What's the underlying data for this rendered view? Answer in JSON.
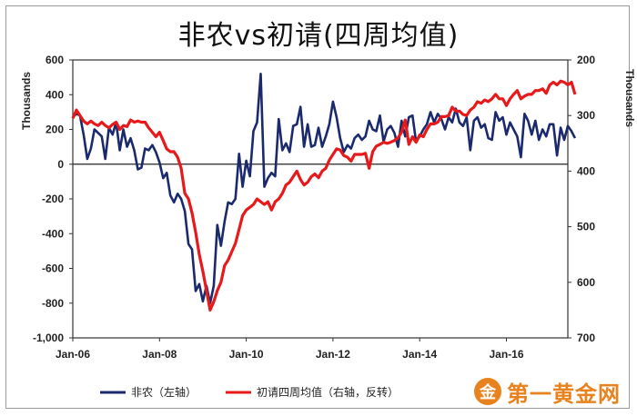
{
  "chart_data": {
    "type": "line",
    "title": "非农vs初请(四周均值)",
    "left_axis": {
      "label": "Thousands",
      "ticks": [
        600,
        400,
        200,
        0,
        -200,
        -400,
        -600,
        -800,
        -1000
      ],
      "tick_labels": [
        "600",
        "400",
        "200",
        "0",
        "-200",
        "-400",
        "-600",
        "-800",
        "-1,000"
      ],
      "range": [
        -1000,
        600
      ]
    },
    "right_axis": {
      "label": "Thousands",
      "ticks": [
        200,
        300,
        400,
        500,
        600,
        700
      ],
      "range": [
        200,
        700
      ],
      "reversed": true
    },
    "x_axis": {
      "tick_labels": [
        "Jan-06",
        "Jan-08",
        "Jan-10",
        "Jan-12",
        "Jan-14",
        "Jan-16"
      ],
      "range": [
        "2006-01",
        "2017-06"
      ]
    },
    "legend_position": "bottom",
    "series": [
      {
        "name": "非农（左轴）",
        "axis": "left",
        "color": "#1a2a6c",
        "points": [
          [
            "2006-01",
            270
          ],
          [
            "2006-02",
            290
          ],
          [
            "2006-03",
            280
          ],
          [
            "2006-04",
            170
          ],
          [
            "2006-05",
            30
          ],
          [
            "2006-06",
            90
          ],
          [
            "2006-07",
            200
          ],
          [
            "2006-08",
            180
          ],
          [
            "2006-09",
            160
          ],
          [
            "2006-10",
            30
          ],
          [
            "2006-11",
            210
          ],
          [
            "2006-12",
            170
          ],
          [
            "2007-01",
            240
          ],
          [
            "2007-02",
            80
          ],
          [
            "2007-03",
            200
          ],
          [
            "2007-04",
            100
          ],
          [
            "2007-05",
            150
          ],
          [
            "2007-06",
            80
          ],
          [
            "2007-07",
            -30
          ],
          [
            "2007-08",
            -20
          ],
          [
            "2007-09",
            90
          ],
          [
            "2007-10",
            80
          ],
          [
            "2007-11",
            110
          ],
          [
            "2007-12",
            70
          ],
          [
            "2008-01",
            10
          ],
          [
            "2008-02",
            -80
          ],
          [
            "2008-03",
            -50
          ],
          [
            "2008-04",
            -180
          ],
          [
            "2008-05",
            -220
          ],
          [
            "2008-06",
            -170
          ],
          [
            "2008-07",
            -200
          ],
          [
            "2008-08",
            -270
          ],
          [
            "2008-09",
            -460
          ],
          [
            "2008-10",
            -490
          ],
          [
            "2008-11",
            -730
          ],
          [
            "2008-12",
            -690
          ],
          [
            "2009-01",
            -790
          ],
          [
            "2009-02",
            -700
          ],
          [
            "2009-03",
            -800
          ],
          [
            "2009-04",
            -700
          ],
          [
            "2009-05",
            -350
          ],
          [
            "2009-06",
            -470
          ],
          [
            "2009-07",
            -330
          ],
          [
            "2009-08",
            -220
          ],
          [
            "2009-09",
            -230
          ],
          [
            "2009-10",
            -200
          ],
          [
            "2009-11",
            60
          ],
          [
            "2009-12",
            -130
          ],
          [
            "2010-01",
            20
          ],
          [
            "2010-02",
            -70
          ],
          [
            "2010-03",
            190
          ],
          [
            "2010-04",
            240
          ],
          [
            "2010-05",
            520
          ],
          [
            "2010-06",
            -130
          ],
          [
            "2010-07",
            -80
          ],
          [
            "2010-08",
            -50
          ],
          [
            "2010-09",
            -70
          ],
          [
            "2010-10",
            260
          ],
          [
            "2010-11",
            80
          ],
          [
            "2010-12",
            120
          ],
          [
            "2011-01",
            70
          ],
          [
            "2011-02",
            220
          ],
          [
            "2011-03",
            230
          ],
          [
            "2011-04",
            330
          ],
          [
            "2011-05",
            100
          ],
          [
            "2011-06",
            230
          ],
          [
            "2011-07",
            100
          ],
          [
            "2011-08",
            110
          ],
          [
            "2011-09",
            210
          ],
          [
            "2011-10",
            100
          ],
          [
            "2011-11",
            160
          ],
          [
            "2011-12",
            230
          ],
          [
            "2012-01",
            360
          ],
          [
            "2012-02",
            270
          ],
          [
            "2012-03",
            150
          ],
          [
            "2012-04",
            70
          ],
          [
            "2012-05",
            110
          ],
          [
            "2012-06",
            90
          ],
          [
            "2012-07",
            150
          ],
          [
            "2012-08",
            170
          ],
          [
            "2012-09",
            140
          ],
          [
            "2012-10",
            160
          ],
          [
            "2012-11",
            250
          ],
          [
            "2012-12",
            200
          ],
          [
            "2013-01",
            190
          ],
          [
            "2013-02",
            280
          ],
          [
            "2013-03",
            130
          ],
          [
            "2013-04",
            200
          ],
          [
            "2013-05",
            220
          ],
          [
            "2013-06",
            180
          ],
          [
            "2013-07",
            100
          ],
          [
            "2013-08",
            250
          ],
          [
            "2013-09",
            160
          ],
          [
            "2013-10",
            270
          ],
          [
            "2013-11",
            280
          ],
          [
            "2013-12",
            130
          ],
          [
            "2014-01",
            160
          ],
          [
            "2014-02",
            200
          ],
          [
            "2014-03",
            230
          ],
          [
            "2014-04",
            300
          ],
          [
            "2014-05",
            240
          ],
          [
            "2014-06",
            290
          ],
          [
            "2014-07",
            260
          ],
          [
            "2014-08",
            200
          ],
          [
            "2014-09",
            270
          ],
          [
            "2014-10",
            240
          ],
          [
            "2014-11",
            320
          ],
          [
            "2014-12",
            240
          ],
          [
            "2015-01",
            220
          ],
          [
            "2015-02",
            270
          ],
          [
            "2015-03",
            80
          ],
          [
            "2015-04",
            250
          ],
          [
            "2015-05",
            270
          ],
          [
            "2015-06",
            210
          ],
          [
            "2015-07",
            230
          ],
          [
            "2015-08",
            150
          ],
          [
            "2015-09",
            140
          ],
          [
            "2015-10",
            300
          ],
          [
            "2015-11",
            250
          ],
          [
            "2015-12",
            270
          ],
          [
            "2016-01",
            170
          ],
          [
            "2016-02",
            240
          ],
          [
            "2016-03",
            200
          ],
          [
            "2016-04",
            160
          ],
          [
            "2016-05",
            40
          ],
          [
            "2016-06",
            290
          ],
          [
            "2016-07",
            250
          ],
          [
            "2016-08",
            170
          ],
          [
            "2016-09",
            250
          ],
          [
            "2016-10",
            140
          ],
          [
            "2016-11",
            200
          ],
          [
            "2016-12",
            160
          ],
          [
            "2017-01",
            230
          ],
          [
            "2017-02",
            230
          ],
          [
            "2017-03",
            50
          ],
          [
            "2017-04",
            210
          ],
          [
            "2017-05",
            140
          ],
          [
            "2017-06",
            220
          ],
          [
            "2017-07",
            190
          ],
          [
            "2017-08",
            150
          ]
        ]
      },
      {
        "name": "初请四周均值（右轴，反转）",
        "axis": "right",
        "color": "#e8191a",
        "points": [
          [
            "2006-01",
            305
          ],
          [
            "2006-02",
            290
          ],
          [
            "2006-03",
            300
          ],
          [
            "2006-04",
            310
          ],
          [
            "2006-05",
            315
          ],
          [
            "2006-06",
            310
          ],
          [
            "2006-07",
            315
          ],
          [
            "2006-08",
            318
          ],
          [
            "2006-09",
            312
          ],
          [
            "2006-10",
            318
          ],
          [
            "2006-11",
            322
          ],
          [
            "2006-12",
            316
          ],
          [
            "2007-01",
            312
          ],
          [
            "2007-02",
            325
          ],
          [
            "2007-03",
            318
          ],
          [
            "2007-04",
            320
          ],
          [
            "2007-05",
            308
          ],
          [
            "2007-06",
            312
          ],
          [
            "2007-07",
            310
          ],
          [
            "2007-08",
            312
          ],
          [
            "2007-09",
            312
          ],
          [
            "2007-10",
            322
          ],
          [
            "2007-11",
            330
          ],
          [
            "2007-12",
            338
          ],
          [
            "2008-01",
            330
          ],
          [
            "2008-02",
            345
          ],
          [
            "2008-03",
            360
          ],
          [
            "2008-04",
            365
          ],
          [
            "2008-05",
            365
          ],
          [
            "2008-06",
            375
          ],
          [
            "2008-07",
            395
          ],
          [
            "2008-08",
            440
          ],
          [
            "2008-09",
            450
          ],
          [
            "2008-10",
            475
          ],
          [
            "2008-11",
            510
          ],
          [
            "2008-12",
            550
          ],
          [
            "2009-01",
            580
          ],
          [
            "2009-02",
            615
          ],
          [
            "2009-03",
            650
          ],
          [
            "2009-04",
            635
          ],
          [
            "2009-05",
            615
          ],
          [
            "2009-06",
            600
          ],
          [
            "2009-07",
            570
          ],
          [
            "2009-08",
            560
          ],
          [
            "2009-09",
            545
          ],
          [
            "2009-10",
            530
          ],
          [
            "2009-11",
            505
          ],
          [
            "2009-12",
            480
          ],
          [
            "2010-01",
            470
          ],
          [
            "2010-02",
            465
          ],
          [
            "2010-03",
            460
          ],
          [
            "2010-04",
            450
          ],
          [
            "2010-05",
            455
          ],
          [
            "2010-06",
            460
          ],
          [
            "2010-07",
            455
          ],
          [
            "2010-08",
            470
          ],
          [
            "2010-09",
            455
          ],
          [
            "2010-10",
            450
          ],
          [
            "2010-11",
            440
          ],
          [
            "2010-12",
            425
          ],
          [
            "2011-01",
            420
          ],
          [
            "2011-02",
            410
          ],
          [
            "2011-03",
            400
          ],
          [
            "2011-04",
            415
          ],
          [
            "2011-05",
            425
          ],
          [
            "2011-06",
            420
          ],
          [
            "2011-07",
            410
          ],
          [
            "2011-08",
            405
          ],
          [
            "2011-09",
            412
          ],
          [
            "2011-10",
            400
          ],
          [
            "2011-11",
            395
          ],
          [
            "2011-12",
            380
          ],
          [
            "2012-01",
            370
          ],
          [
            "2012-02",
            360
          ],
          [
            "2012-03",
            362
          ],
          [
            "2012-04",
            372
          ],
          [
            "2012-05",
            375
          ],
          [
            "2012-06",
            382
          ],
          [
            "2012-07",
            370
          ],
          [
            "2012-08",
            370
          ],
          [
            "2012-09",
            370
          ],
          [
            "2012-10",
            368
          ],
          [
            "2012-11",
            395
          ],
          [
            "2012-12",
            365
          ],
          [
            "2013-01",
            355
          ],
          [
            "2013-02",
            352
          ],
          [
            "2013-03",
            348
          ],
          [
            "2013-04",
            350
          ],
          [
            "2013-05",
            348
          ],
          [
            "2013-06",
            345
          ],
          [
            "2013-07",
            340
          ],
          [
            "2013-08",
            330
          ],
          [
            "2013-09",
            308
          ],
          [
            "2013-10",
            352
          ],
          [
            "2013-11",
            338
          ],
          [
            "2013-12",
            348
          ],
          [
            "2014-01",
            335
          ],
          [
            "2014-02",
            338
          ],
          [
            "2014-03",
            325
          ],
          [
            "2014-04",
            315
          ],
          [
            "2014-05",
            315
          ],
          [
            "2014-06",
            312
          ],
          [
            "2014-07",
            302
          ],
          [
            "2014-08",
            302
          ],
          [
            "2014-09",
            300
          ],
          [
            "2014-10",
            285
          ],
          [
            "2014-11",
            292
          ],
          [
            "2014-12",
            292
          ],
          [
            "2015-01",
            298
          ],
          [
            "2015-02",
            300
          ],
          [
            "2015-03",
            290
          ],
          [
            "2015-04",
            285
          ],
          [
            "2015-05",
            275
          ],
          [
            "2015-06",
            278
          ],
          [
            "2015-07",
            272
          ],
          [
            "2015-08",
            275
          ],
          [
            "2015-09",
            270
          ],
          [
            "2015-10",
            262
          ],
          [
            "2015-11",
            270
          ],
          [
            "2015-12",
            270
          ],
          [
            "2016-01",
            282
          ],
          [
            "2016-02",
            270
          ],
          [
            "2016-03",
            262
          ],
          [
            "2016-04",
            255
          ],
          [
            "2016-05",
            270
          ],
          [
            "2016-06",
            265
          ],
          [
            "2016-07",
            262
          ],
          [
            "2016-08",
            262
          ],
          [
            "2016-09",
            255
          ],
          [
            "2016-10",
            255
          ],
          [
            "2016-11",
            252
          ],
          [
            "2016-12",
            260
          ],
          [
            "2017-01",
            245
          ],
          [
            "2017-02",
            240
          ],
          [
            "2017-03",
            245
          ],
          [
            "2017-04",
            238
          ],
          [
            "2017-05",
            240
          ],
          [
            "2017-06",
            245
          ],
          [
            "2017-07",
            240
          ],
          [
            "2017-08",
            262
          ]
        ]
      }
    ]
  },
  "watermark": {
    "circle_text": "金",
    "text": "第一黄金网"
  }
}
